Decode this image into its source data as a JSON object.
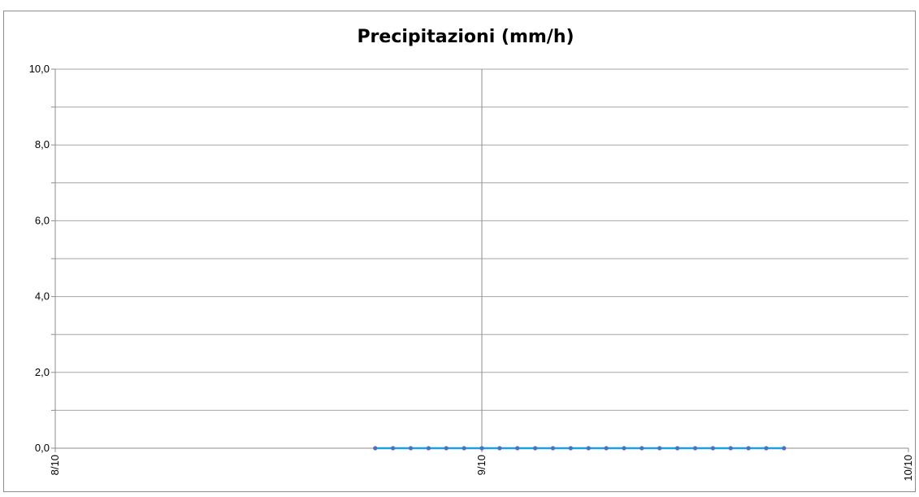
{
  "chart_data": {
    "type": "line",
    "title": "Precipitazioni (mm/h)",
    "xlabel": "",
    "ylabel": "",
    "x_tick_labels": [
      "8/10",
      "9/10",
      "10/10"
    ],
    "y_tick_labels": [
      "0,0",
      "2,0",
      "4,0",
      "6,0",
      "8,0",
      "10,0"
    ],
    "ylim": [
      0,
      10
    ],
    "y_major_step": 2,
    "y_minor_step": 1,
    "grid": true,
    "legend": "none",
    "series": [
      {
        "color": "#1ea0e0",
        "marker_color": "#4f6fbf",
        "x": [
          "8/10 18:00",
          "8/10 19:00",
          "8/10 20:00",
          "8/10 21:00",
          "8/10 22:00",
          "8/10 23:00",
          "9/10 00:00",
          "9/10 01:00",
          "9/10 02:00",
          "9/10 03:00",
          "9/10 04:00",
          "9/10 05:00",
          "9/10 06:00",
          "9/10 07:00",
          "9/10 08:00",
          "9/10 09:00",
          "9/10 10:00",
          "9/10 11:00",
          "9/10 12:00",
          "9/10 13:00",
          "9/10 14:00",
          "9/10 15:00",
          "9/10 16:00",
          "9/10 17:00"
        ],
        "values": [
          0,
          0,
          0,
          0,
          0,
          0,
          0,
          0,
          0,
          0,
          0,
          0,
          0,
          0,
          0,
          0,
          0,
          0,
          0,
          0,
          0,
          0,
          0,
          0
        ]
      }
    ]
  }
}
